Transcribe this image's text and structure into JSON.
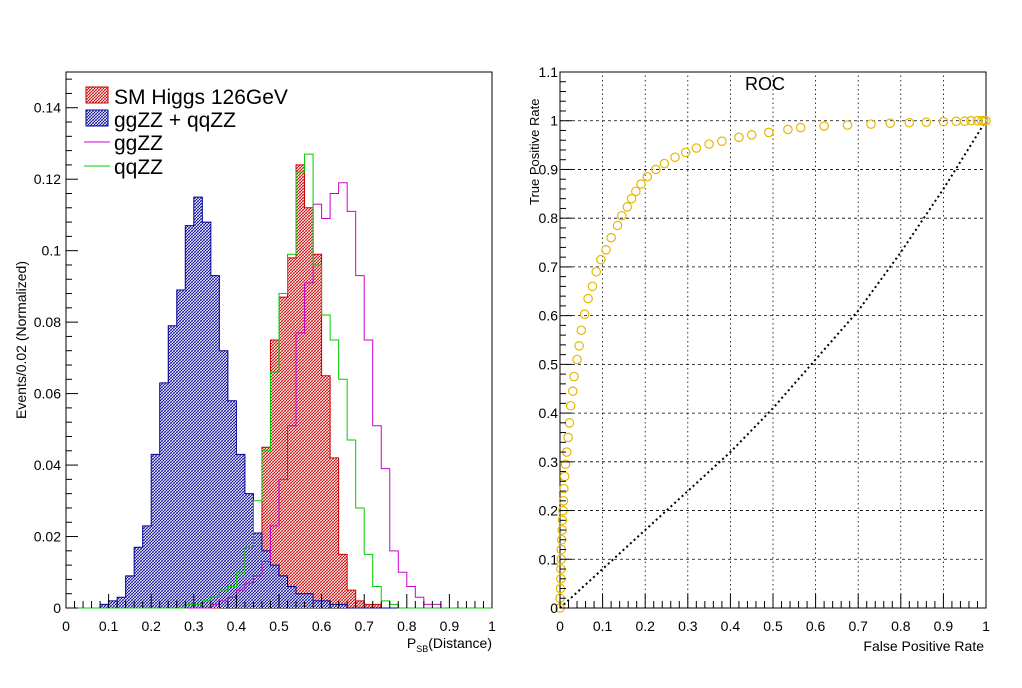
{
  "chart_data": [
    {
      "type": "histogram",
      "xlabel_main": "P",
      "xlabel_sub": "SB",
      "xlabel_rest": "(Distance)",
      "ylabel": "Events/0.02 (Normalized)",
      "xlim": [
        0,
        1
      ],
      "ylim": [
        0,
        0.15
      ],
      "bin_width": 0.02,
      "x_ticks": [
        "0",
        "0.1",
        "0.2",
        "0.3",
        "0.4",
        "0.5",
        "0.6",
        "0.7",
        "0.8",
        "0.9",
        "1"
      ],
      "y_ticks": [
        "0",
        "0.02",
        "0.04",
        "0.06",
        "0.08",
        "0.1",
        "0.12",
        "0.14"
      ],
      "legend": [
        {
          "label": "SM Higgs 126GeV",
          "color": "#cc0000",
          "style": "hatched-fill"
        },
        {
          "label": "ggZZ + qqZZ",
          "color": "#000099",
          "style": "hatched-fill"
        },
        {
          "label": "ggZZ",
          "color": "#cc00cc",
          "style": "line"
        },
        {
          "label": "qqZZ",
          "color": "#00cc00",
          "style": "line"
        }
      ],
      "series": [
        {
          "name": "SM Higgs 126GeV",
          "color": "#cc0000",
          "fill": true,
          "values": [
            0,
            0,
            0,
            0,
            0,
            0,
            0,
            0,
            0,
            0,
            0,
            0,
            0,
            0,
            0,
            0,
            0,
            0,
            0.001,
            0.002,
            0.005,
            0.01,
            0.02,
            0.045,
            0.075,
            0.087,
            0.098,
            0.124,
            0.112,
            0.099,
            0.065,
            0.042,
            0.015,
            0.005,
            0.002,
            0.001,
            0.001,
            0,
            0,
            0,
            0,
            0,
            0,
            0,
            0,
            0,
            0,
            0,
            0,
            0
          ]
        },
        {
          "name": "ggZZ + qqZZ",
          "color": "#000099",
          "fill": true,
          "values": [
            0,
            0,
            0,
            0,
            0.001,
            0.002,
            0.003,
            0.009,
            0.017,
            0.023,
            0.043,
            0.063,
            0.079,
            0.089,
            0.107,
            0.115,
            0.108,
            0.093,
            0.072,
            0.058,
            0.043,
            0.032,
            0.021,
            0.016,
            0.012,
            0.009,
            0.006,
            0.004,
            0.004,
            0.002,
            0.002,
            0.001,
            0.001,
            0,
            0,
            0,
            0,
            0,
            0,
            0,
            0,
            0,
            0,
            0,
            0,
            0,
            0,
            0,
            0,
            0
          ]
        },
        {
          "name": "ggZZ",
          "color": "#cc00cc",
          "fill": false,
          "values": [
            0,
            0,
            0,
            0,
            0,
            0,
            0,
            0,
            0,
            0,
            0,
            0,
            0,
            0,
            0,
            0,
            0,
            0.001,
            0.002,
            0.003,
            0.005,
            0.007,
            0.009,
            0.013,
            0.023,
            0.036,
            0.051,
            0.077,
            0.091,
            0.113,
            0.109,
            0.116,
            0.119,
            0.111,
            0.093,
            0.075,
            0.051,
            0.039,
            0.016,
            0.01,
            0.006,
            0.003,
            0.001,
            0.001,
            0,
            0,
            0,
            0,
            0,
            0
          ]
        },
        {
          "name": "qqZZ",
          "color": "#00cc00",
          "fill": false,
          "values": [
            0,
            0,
            0,
            0,
            0,
            0,
            0,
            0,
            0,
            0,
            0,
            0,
            0,
            0,
            0.001,
            0.001,
            0.002,
            0.003,
            0.005,
            0.006,
            0.01,
            0.017,
            0.03,
            0.044,
            0.066,
            0.088,
            0.099,
            0.122,
            0.127,
            0.096,
            0.082,
            0.075,
            0.064,
            0.047,
            0.028,
            0.015,
            0.006,
            0.002,
            0.001,
            0,
            0,
            0,
            0,
            0,
            0,
            0,
            0,
            0,
            0,
            0
          ]
        }
      ]
    },
    {
      "type": "scatter",
      "title": "ROC",
      "xlabel": "False Positive Rate",
      "ylabel": "True Positive Rate",
      "xlim": [
        0,
        1
      ],
      "ylim": [
        0,
        1.1
      ],
      "grid": true,
      "x_ticks": [
        "0",
        "0.1",
        "0.2",
        "0.3",
        "0.4",
        "0.5",
        "0.6",
        "0.7",
        "0.8",
        "0.9",
        "1"
      ],
      "y_ticks": [
        "0",
        "0.1",
        "0.2",
        "0.3",
        "0.4",
        "0.5",
        "0.6",
        "0.7",
        "0.8",
        "0.9",
        "1",
        "1.1"
      ],
      "marker_color": "#e6b800",
      "diagonal": true,
      "points": [
        [
          0.0,
          0.0
        ],
        [
          0.0,
          0.02
        ],
        [
          0.001,
          0.04
        ],
        [
          0.002,
          0.06
        ],
        [
          0.002,
          0.08
        ],
        [
          0.003,
          0.1
        ],
        [
          0.003,
          0.12
        ],
        [
          0.004,
          0.14
        ],
        [
          0.005,
          0.16
        ],
        [
          0.006,
          0.18
        ],
        [
          0.007,
          0.2
        ],
        [
          0.008,
          0.22
        ],
        [
          0.009,
          0.245
        ],
        [
          0.011,
          0.27
        ],
        [
          0.013,
          0.295
        ],
        [
          0.016,
          0.32
        ],
        [
          0.019,
          0.35
        ],
        [
          0.022,
          0.38
        ],
        [
          0.025,
          0.415
        ],
        [
          0.03,
          0.445
        ],
        [
          0.033,
          0.475
        ],
        [
          0.04,
          0.51
        ],
        [
          0.045,
          0.538
        ],
        [
          0.05,
          0.57
        ],
        [
          0.058,
          0.603
        ],
        [
          0.066,
          0.635
        ],
        [
          0.076,
          0.66
        ],
        [
          0.085,
          0.69
        ],
        [
          0.096,
          0.715
        ],
        [
          0.108,
          0.735
        ],
        [
          0.12,
          0.76
        ],
        [
          0.135,
          0.785
        ],
        [
          0.145,
          0.805
        ],
        [
          0.158,
          0.823
        ],
        [
          0.168,
          0.84
        ],
        [
          0.178,
          0.855
        ],
        [
          0.19,
          0.87
        ],
        [
          0.205,
          0.885
        ],
        [
          0.225,
          0.9
        ],
        [
          0.245,
          0.912
        ],
        [
          0.27,
          0.925
        ],
        [
          0.295,
          0.935
        ],
        [
          0.32,
          0.944
        ],
        [
          0.35,
          0.952
        ],
        [
          0.38,
          0.958
        ],
        [
          0.42,
          0.966
        ],
        [
          0.45,
          0.971
        ],
        [
          0.49,
          0.976
        ],
        [
          0.535,
          0.982
        ],
        [
          0.565,
          0.986
        ],
        [
          0.62,
          0.989
        ],
        [
          0.675,
          0.991
        ],
        [
          0.73,
          0.993
        ],
        [
          0.775,
          0.995
        ],
        [
          0.82,
          0.996
        ],
        [
          0.86,
          0.997
        ],
        [
          0.9,
          0.998
        ],
        [
          0.93,
          0.999
        ],
        [
          0.95,
          0.999
        ],
        [
          0.965,
          1.0
        ],
        [
          0.98,
          1.0
        ],
        [
          0.99,
          1.0
        ],
        [
          0.995,
          1.0
        ],
        [
          1.0,
          1.0
        ]
      ],
      "diagonal_points": [
        [
          0,
          0
        ],
        [
          0.1,
          0.08
        ],
        [
          0.2,
          0.16
        ],
        [
          0.3,
          0.24
        ],
        [
          0.4,
          0.32
        ],
        [
          0.5,
          0.41
        ],
        [
          0.6,
          0.51
        ],
        [
          0.7,
          0.61
        ],
        [
          0.8,
          0.73
        ],
        [
          0.9,
          0.86
        ],
        [
          1,
          1
        ]
      ]
    }
  ]
}
